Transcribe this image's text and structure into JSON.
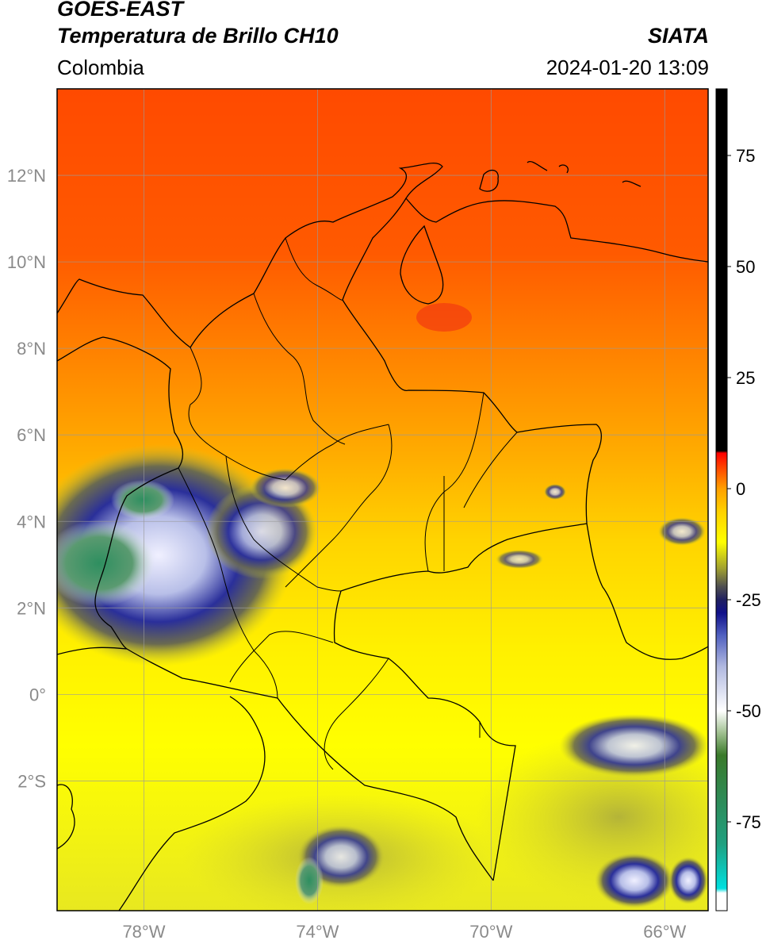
{
  "header": {
    "satellite": "GOES-EAST",
    "product": "Temperatura de Brillo CH10",
    "region": "Colombia",
    "agency": "SIATA",
    "datetime": "2024-01-20 13:09"
  },
  "map": {
    "lon_range": [
      -80,
      -65
    ],
    "lat_range": [
      -5,
      14
    ],
    "lat_ticks": [
      {
        "value": 12,
        "label": "12°N"
      },
      {
        "value": 10,
        "label": "10°N"
      },
      {
        "value": 8,
        "label": "8°N"
      },
      {
        "value": 6,
        "label": "6°N"
      },
      {
        "value": 4,
        "label": "4°N"
      },
      {
        "value": 2,
        "label": "2°N"
      },
      {
        "value": 0,
        "label": "0°"
      },
      {
        "value": -2,
        "label": "2°S"
      }
    ],
    "lon_ticks": [
      {
        "value": -78,
        "label": "78°W"
      },
      {
        "value": -74,
        "label": "74°W"
      },
      {
        "value": -70,
        "label": "70°W"
      },
      {
        "value": -66,
        "label": "66°W"
      }
    ],
    "label_color": "#8a8a8a"
  },
  "colorbar": {
    "range": [
      -95,
      90
    ],
    "ticks": [
      {
        "value": 75,
        "label": "75"
      },
      {
        "value": 50,
        "label": "50"
      },
      {
        "value": 25,
        "label": "25"
      },
      {
        "value": 0,
        "label": "0"
      },
      {
        "value": -25,
        "label": "-25"
      },
      {
        "value": -50,
        "label": "-50"
      },
      {
        "value": -75,
        "label": "-75"
      }
    ],
    "stops": [
      {
        "value": -95,
        "color": "#ffffff"
      },
      {
        "value": -91,
        "color": "#ffffff"
      },
      {
        "value": -90,
        "color": "#00e0e0"
      },
      {
        "value": -80,
        "color": "#20a080"
      },
      {
        "value": -70,
        "color": "#2e8b57"
      },
      {
        "value": -60,
        "color": "#3a7a2a"
      },
      {
        "value": -55,
        "color": "#a0c090"
      },
      {
        "value": -50,
        "color": "#ffffff"
      },
      {
        "value": -40,
        "color": "#b0b8e0"
      },
      {
        "value": -33,
        "color": "#5060c0"
      },
      {
        "value": -28,
        "color": "#10108a"
      },
      {
        "value": -25,
        "color": "#202060"
      },
      {
        "value": -22,
        "color": "#505050"
      },
      {
        "value": -18,
        "color": "#a0a030"
      },
      {
        "value": -12,
        "color": "#ffff00"
      },
      {
        "value": -5,
        "color": "#ffd000"
      },
      {
        "value": 0,
        "color": "#ffa000"
      },
      {
        "value": 5,
        "color": "#ff4000"
      },
      {
        "value": 8,
        "color": "#ff0000"
      },
      {
        "value": 8.5,
        "color": "#000000"
      },
      {
        "value": 90,
        "color": "#000000"
      }
    ]
  }
}
